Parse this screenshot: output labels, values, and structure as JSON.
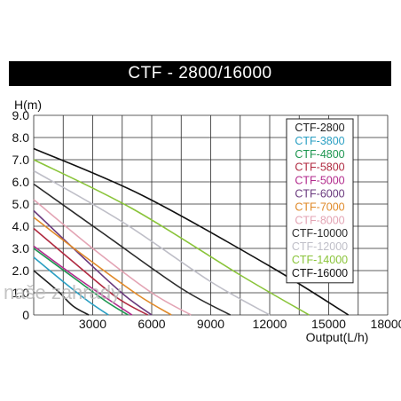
{
  "chart_data": {
    "type": "line",
    "title": "CTF - 2800/16000",
    "ylabel": "H(m)",
    "xlabel": "Output(L/h)",
    "xlim": [
      0,
      18000
    ],
    "ylim": [
      0,
      9
    ],
    "x_ticks": [
      0,
      3000,
      6000,
      9000,
      12000,
      15000,
      18000
    ],
    "x_tick_labels": [
      "",
      "3000",
      "6000",
      "9000",
      "12000",
      "15000",
      "18000"
    ],
    "y_ticks": [
      0,
      1,
      2,
      3,
      4,
      5,
      6,
      7,
      8,
      9
    ],
    "y_tick_labels": [
      "0",
      "1.0",
      "2.0",
      "3.0",
      "4.0",
      "5.0",
      "6.0",
      "7.0",
      "8.0",
      "9.0"
    ],
    "grid": true,
    "legend_position": "top-right",
    "series": [
      {
        "name": "CTF-2800",
        "color": "#202020",
        "points": [
          [
            0,
            2.0
          ],
          [
            1200,
            1.1
          ],
          [
            2000,
            0.4
          ],
          [
            2800,
            0
          ]
        ]
      },
      {
        "name": "CTF-3800",
        "color": "#2a9fc3",
        "points": [
          [
            0,
            2.6
          ],
          [
            1500,
            1.5
          ],
          [
            2800,
            0.6
          ],
          [
            3800,
            0
          ]
        ]
      },
      {
        "name": "CTF-4800",
        "color": "#1e9650",
        "points": [
          [
            0,
            3.0
          ],
          [
            2000,
            1.7
          ],
          [
            3700,
            0.6
          ],
          [
            4800,
            0
          ]
        ]
      },
      {
        "name": "CTF-5800",
        "color": "#b02a40",
        "points": [
          [
            0,
            3.9
          ],
          [
            2000,
            2.4
          ],
          [
            4200,
            0.8
          ],
          [
            5800,
            0
          ]
        ]
      },
      {
        "name": "CTF-5000",
        "color": "#b22a8c",
        "points": [
          [
            0,
            3.1
          ],
          [
            2000,
            1.8
          ],
          [
            3800,
            0.7
          ],
          [
            5000,
            0
          ]
        ]
      },
      {
        "name": "CTF-6000",
        "color": "#6a3a7e",
        "points": [
          [
            0,
            4.7
          ],
          [
            2500,
            2.6
          ],
          [
            4600,
            0.9
          ],
          [
            6000,
            0
          ]
        ]
      },
      {
        "name": "CTF-7000",
        "color": "#e08a2a",
        "points": [
          [
            0,
            4.4
          ],
          [
            2500,
            2.7
          ],
          [
            5300,
            0.9
          ],
          [
            7000,
            0
          ]
        ]
      },
      {
        "name": "CTF-8000",
        "color": "#e3a4b4",
        "points": [
          [
            0,
            5.2
          ],
          [
            3000,
            3.0
          ],
          [
            6000,
            1.0
          ],
          [
            8000,
            0
          ]
        ]
      },
      {
        "name": "CTF-10000",
        "color": "#2c2c2c",
        "points": [
          [
            0,
            5.9
          ],
          [
            3500,
            3.7
          ],
          [
            7500,
            1.2
          ],
          [
            10000,
            0
          ]
        ]
      },
      {
        "name": "CTF-12000",
        "color": "#bfbfc8",
        "points": [
          [
            0,
            6.5
          ],
          [
            4500,
            4.2
          ],
          [
            9000,
            1.5
          ],
          [
            12000,
            0
          ]
        ]
      },
      {
        "name": "CTF-14000",
        "color": "#8ac43a",
        "points": [
          [
            0,
            7.0
          ],
          [
            5000,
            4.8
          ],
          [
            10500,
            1.8
          ],
          [
            14000,
            0
          ]
        ]
      },
      {
        "name": "CTF-16000",
        "color": "#111111",
        "points": [
          [
            0,
            7.5
          ],
          [
            5500,
            5.4
          ],
          [
            12000,
            2.2
          ],
          [
            16000,
            0
          ]
        ]
      }
    ]
  },
  "watermark": "naše zahrady"
}
